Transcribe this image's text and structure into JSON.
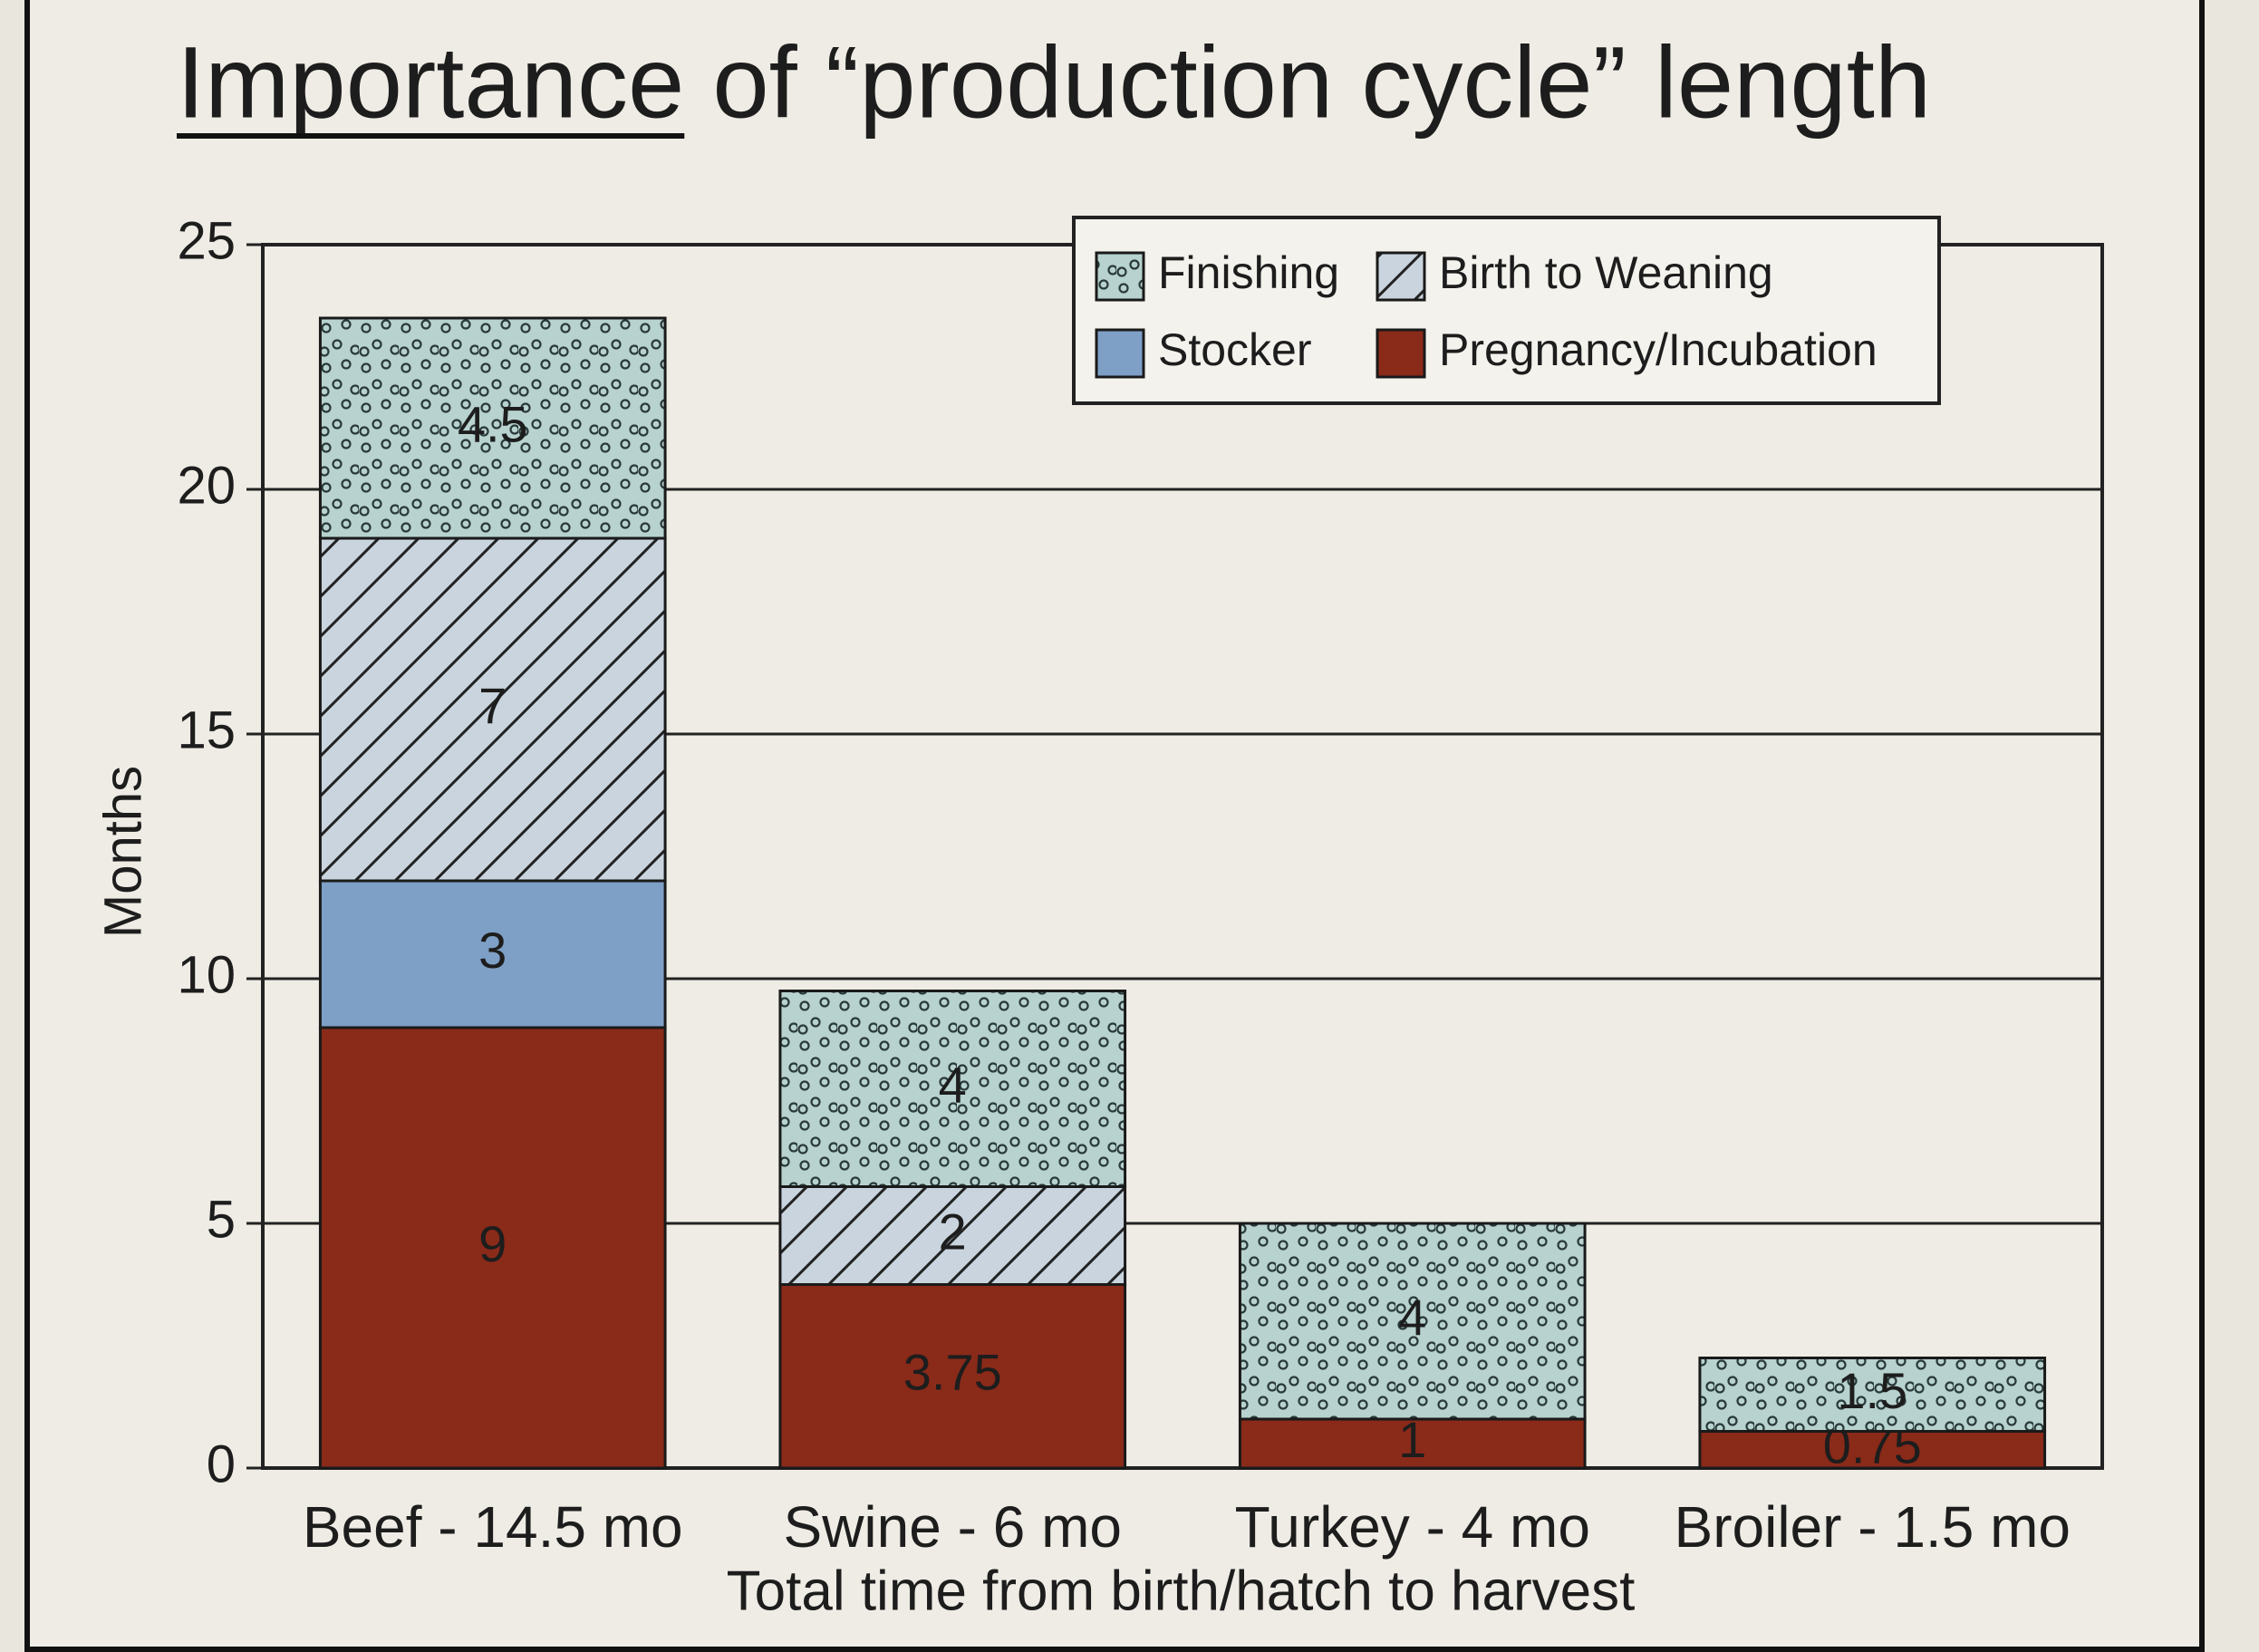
{
  "chart_data": {
    "type": "stacked_bar",
    "title": "Importance of “production cycle” length",
    "y_label": "Months",
    "x_label": "Total time from birth/hatch to harvest",
    "categories": [
      "Beef - 14.5 mo",
      "Swine - 6 mo",
      "Turkey - 4 mo",
      "Broiler - 1.5 mo"
    ],
    "series": [
      {
        "name": "Finishing",
        "color": "#b7d2cf",
        "values": [
          4.5,
          4,
          4,
          1.5
        ]
      },
      {
        "name": "Birth to Weaning",
        "color": "#c9d4de",
        "values": [
          7,
          2,
          null,
          null
        ]
      },
      {
        "name": "Stocker",
        "color": "#7e9fc6",
        "values": [
          3,
          null,
          null,
          null
        ]
      },
      {
        "name": "Pregnancy/Incubation",
        "color": "#8a2a19",
        "values": [
          9,
          3.75,
          1,
          0.75
        ]
      }
    ],
    "ylim": [
      0,
      25
    ],
    "yticks": [
      0,
      5,
      10,
      15,
      20,
      25
    ],
    "grid": true
  }
}
